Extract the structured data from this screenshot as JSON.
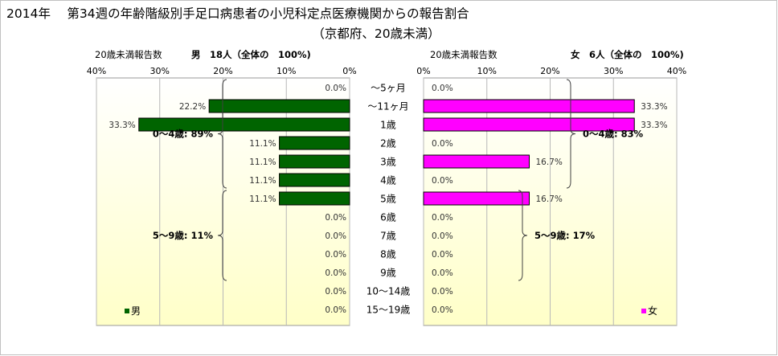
{
  "title_line1": "2014年　 第34週の年齢階級別手足口病患者の小児科定点医療機関からの報告割合",
  "title_line2": "（京都府、20歳未満）",
  "categories": [
    "～5ヶ月",
    "～11ヶ月",
    "1歳",
    "2歳",
    "3歳",
    "4歳",
    "5歳",
    "6歳",
    "7歳",
    "8歳",
    "9歳",
    "10～14歳",
    "15～19歳"
  ],
  "colors": {
    "male": "#006400",
    "female": "#FF00FF",
    "plot_bg_top": "#ffffff",
    "plot_bg_bottom": "#ffffc8"
  },
  "chart_data": [
    {
      "type": "bar",
      "orientation": "horizontal-reversed",
      "panel_label": "20歳未満報告数",
      "header": "男　18人（全体の　100%)",
      "legend": "男",
      "legend_position": "bottom-left",
      "x_ticks": [
        "40%",
        "30%",
        "20%",
        "10%",
        "0%"
      ],
      "xlim": [
        0,
        40
      ],
      "series": [
        {
          "name": "男",
          "values": [
            0.0,
            22.2,
            33.3,
            11.1,
            11.1,
            11.1,
            11.1,
            0.0,
            0.0,
            0.0,
            0.0,
            0.0,
            0.0
          ],
          "labels": [
            "0.0%",
            "22.2%",
            "33.3%",
            "11.1%",
            "11.1%",
            "11.1%",
            "11.1%",
            "0.0%",
            "0.0%",
            "0.0%",
            "0.0%",
            "0.0%",
            "0.0%"
          ]
        }
      ],
      "annotations": [
        {
          "text": "0～4歳: 89%",
          "from": 0,
          "to": 5
        },
        {
          "text": "5～9歳: 11%",
          "from": 6,
          "to": 10
        }
      ]
    },
    {
      "type": "bar",
      "orientation": "horizontal",
      "panel_label": "20歳未満報告数",
      "header": "女　6人（全体の　100%)",
      "legend": "女",
      "legend_position": "bottom-right",
      "x_ticks": [
        "0%",
        "10%",
        "20%",
        "30%",
        "40%"
      ],
      "xlim": [
        0,
        40
      ],
      "series": [
        {
          "name": "女",
          "values": [
            0.0,
            33.3,
            33.3,
            0.0,
            16.7,
            0.0,
            16.7,
            0.0,
            0.0,
            0.0,
            0.0,
            0.0,
            0.0
          ],
          "labels": [
            "0.0%",
            "33.3%",
            "33.3%",
            "0.0%",
            "16.7%",
            "0.0%",
            "16.7%",
            "0.0%",
            "0.0%",
            "0.0%",
            "0.0%",
            "0.0%",
            "0.0%"
          ]
        }
      ],
      "annotations": [
        {
          "text": "0～4歳: 83%",
          "from": 0,
          "to": 5
        },
        {
          "text": "5～9歳: 17%",
          "from": 6,
          "to": 10
        }
      ]
    }
  ]
}
